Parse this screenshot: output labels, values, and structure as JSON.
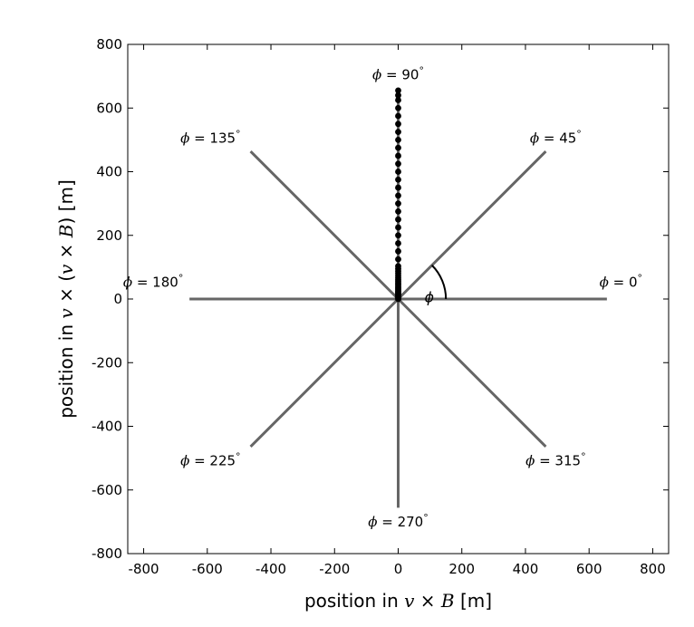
{
  "chart_data": {
    "type": "scatter",
    "title": "",
    "xlabel": "position in v × B [m]",
    "ylabel": "position in v × (v × B) [m]",
    "xlabel_parts": {
      "prefix": "position in ",
      "vec1": "v",
      "op": " × ",
      "vec2": "B",
      "suffix": " [m]"
    },
    "ylabel_parts": {
      "prefix": "position in ",
      "vec1": "v",
      "op": " × (",
      "vec2": "v",
      "op2": " × ",
      "vec3": "B",
      "close": ")",
      "suffix": " [m]"
    },
    "xlim": [
      -850,
      850
    ],
    "ylim": [
      -800,
      800
    ],
    "xticks": [
      -800,
      -600,
      -400,
      -200,
      0,
      200,
      400,
      600,
      800
    ],
    "yticks": [
      -800,
      -600,
      -400,
      -200,
      0,
      200,
      400,
      600,
      800
    ],
    "xtick_labels": [
      "-800",
      "-600",
      "-400",
      "-200",
      "0",
      "200",
      "400",
      "600",
      "800"
    ],
    "ytick_labels": [
      "800",
      "600",
      "400",
      "200",
      "0",
      "-200",
      "-400",
      "-600",
      "-800"
    ],
    "grid": false,
    "arms": {
      "color": "#666666",
      "length_m": 656,
      "angles_deg": [
        0,
        45,
        90,
        135,
        180,
        225,
        270,
        315
      ]
    },
    "points": {
      "color": "#000000",
      "angle_deg": 90,
      "x": [
        0,
        0,
        0,
        0,
        0,
        0,
        0,
        0,
        0,
        0,
        0,
        0,
        0,
        0,
        0,
        0,
        0,
        0,
        0,
        0,
        0,
        0,
        0,
        0,
        0,
        0,
        0,
        0,
        0,
        0,
        0,
        0,
        0,
        0,
        0,
        0,
        0,
        0,
        0,
        0,
        0,
        0,
        0,
        0,
        0,
        0
      ],
      "y": [
        0,
        3,
        6,
        9,
        12,
        15,
        18,
        21,
        24,
        28,
        32,
        36,
        40,
        45,
        50,
        55,
        61,
        67,
        74,
        81,
        88,
        95,
        103,
        125,
        150,
        175,
        200,
        225,
        250,
        275,
        300,
        325,
        350,
        375,
        400,
        425,
        450,
        475,
        500,
        525,
        550,
        575,
        600,
        625,
        640,
        655
      ]
    },
    "angle_marker": {
      "symbol": "ϕ",
      "from_deg": 0,
      "to_deg": 45,
      "radius_m": 150
    },
    "annotations": [
      {
        "sym": "ϕ",
        "text": " = 90",
        "deg": "°",
        "x": 0,
        "y": 705
      },
      {
        "sym": "ϕ",
        "text": " = 135",
        "deg": "°",
        "x": -590,
        "y": 505
      },
      {
        "sym": "ϕ",
        "text": " = 45",
        "deg": "°",
        "x": 495,
        "y": 505
      },
      {
        "sym": "ϕ",
        "text": " = 180",
        "deg": "°",
        "x": -770,
        "y": 52
      },
      {
        "sym": "ϕ",
        "text": " = 0",
        "deg": "°",
        "x": 700,
        "y": 52
      },
      {
        "sym": "ϕ",
        "text": " = 225",
        "deg": "°",
        "x": -590,
        "y": -508
      },
      {
        "sym": "ϕ",
        "text": " = 315",
        "deg": "°",
        "x": 495,
        "y": -508
      },
      {
        "sym": "ϕ",
        "text": " = 270",
        "deg": "°",
        "x": 0,
        "y": -700
      }
    ]
  }
}
